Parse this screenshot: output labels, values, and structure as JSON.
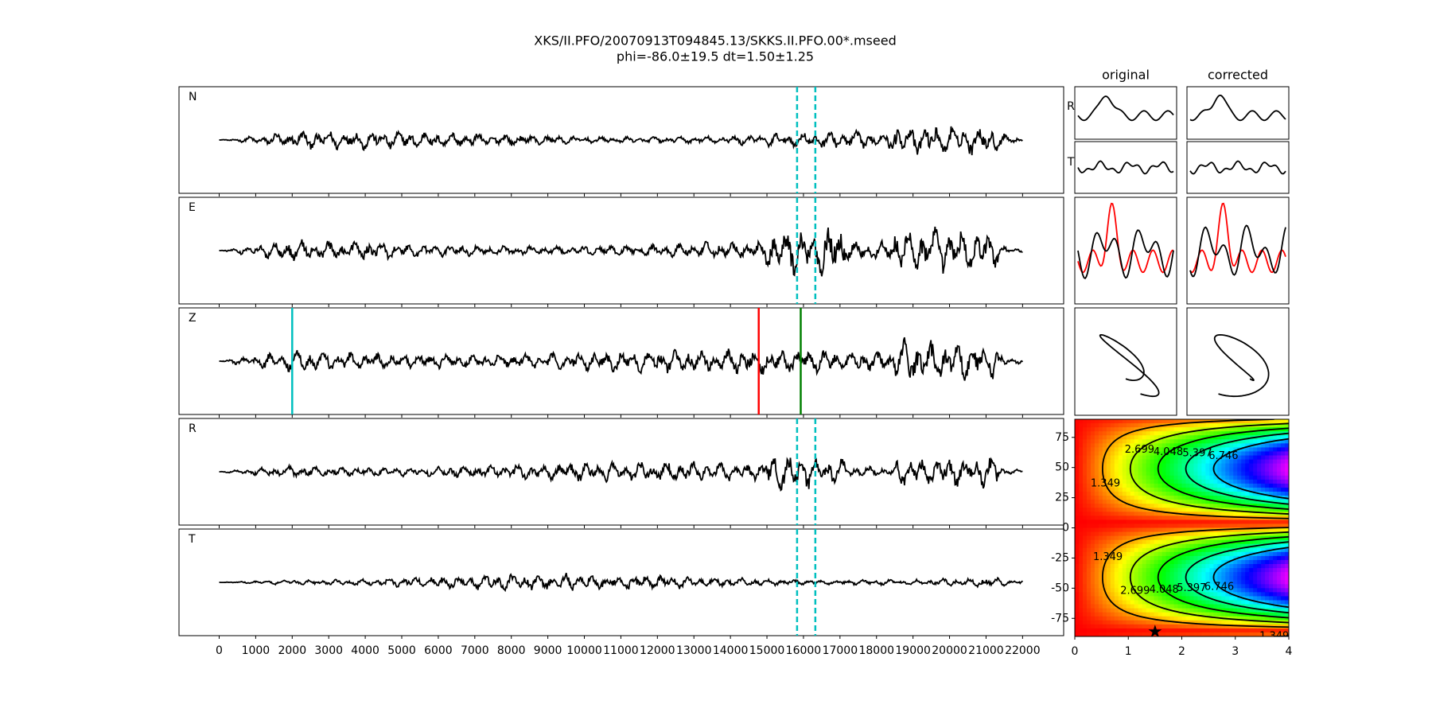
{
  "chart_data": [
    {
      "type": "waveform",
      "title": "XKS/II.PFO/20070913T094845.13/SKKS.II.PFO.00*.mseed",
      "subtitle": "phi=-86.0±19.5 dt=1.50±1.25",
      "channels": [
        "N",
        "E",
        "Z",
        "R",
        "T"
      ],
      "xlim": [
        -1100,
        23125
      ],
      "xticks": [
        0,
        1000,
        2000,
        3000,
        4000,
        5000,
        6000,
        7000,
        8000,
        9000,
        10000,
        11000,
        12000,
        13000,
        14000,
        15000,
        16000,
        17000,
        18000,
        19000,
        20000,
        21000,
        22000
      ],
      "window": [
        15825,
        16325
      ],
      "window_color": "#00bfbf",
      "picks": [
        {
          "value": 2000,
          "color": "#00bfbf"
        },
        {
          "value": 14775,
          "color": "#ff0000"
        },
        {
          "value": 15925,
          "color": "#008000"
        }
      ]
    },
    {
      "type": "contour",
      "xlim": [
        0,
        4
      ],
      "ylim": [
        -90,
        90
      ],
      "xticks": [
        0,
        1,
        2,
        3,
        4
      ],
      "yticks": [
        -75,
        -50,
        -25,
        0,
        25,
        50,
        75
      ],
      "levels": [
        1.349,
        2.699,
        4.048,
        5.397,
        6.746
      ],
      "best": {
        "x": 1.5,
        "y": -86
      }
    }
  ],
  "panels": {
    "columns": [
      "original",
      "corrected"
    ],
    "rows": [
      "R",
      "T"
    ]
  }
}
